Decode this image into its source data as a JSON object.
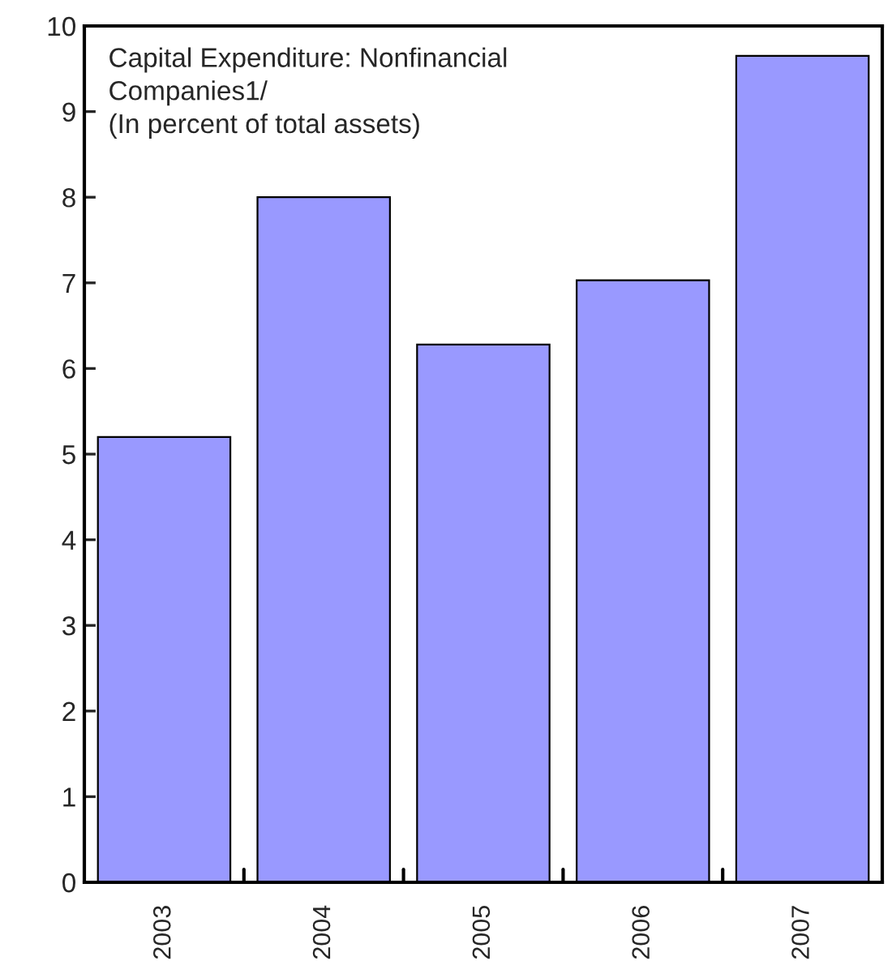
{
  "chart_data": {
    "type": "bar",
    "title": "Capital Expenditure: Nonfinancial\nCompanies1/\n(In percent of total assets)",
    "categories": [
      "2003",
      "2004",
      "2005",
      "2006",
      "2007"
    ],
    "values": [
      5.2,
      8.0,
      6.28,
      7.03,
      9.65
    ],
    "color": "#9999ff",
    "ylim": [
      0,
      10
    ],
    "yticks": [
      0,
      1,
      2,
      3,
      4,
      5,
      6,
      7,
      8,
      9,
      10
    ],
    "grid": false,
    "legend": false
  }
}
